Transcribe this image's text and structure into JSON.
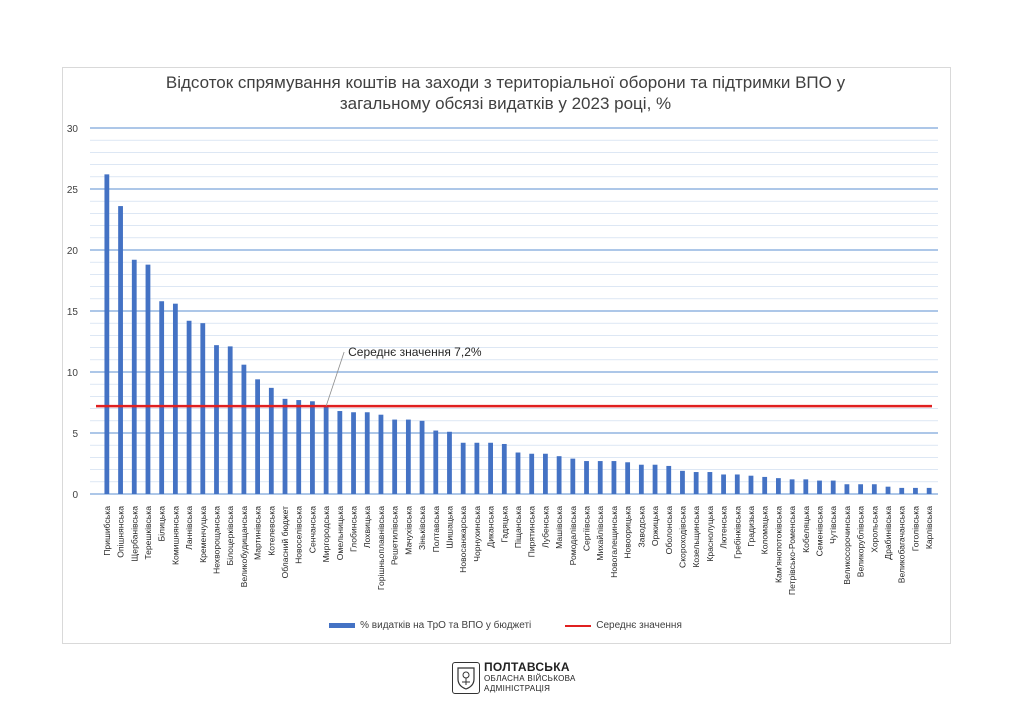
{
  "chart_data": {
    "type": "bar",
    "title_line1": "Відсоток спрямування коштів на заходи з територіальної оборони та підтримки ВПО у",
    "title_line2": "загальному обсязі видатків у 2023 році, %",
    "xlabel": "",
    "ylabel": "",
    "ylim": [
      0,
      30
    ],
    "yticks": [
      0,
      5,
      10,
      15,
      20,
      25,
      30
    ],
    "grid": true,
    "categories": [
      "Пришибська",
      "Опішнянська",
      "Щербанівська",
      "Терешківська",
      "Білицька",
      "Комишнянська",
      "Ланнівська",
      "Кременчуцька",
      "Нехворощанська",
      "Білоцерківська",
      "Великобудищанська",
      "Мартинівська",
      "Котелевська",
      "Обласний бюджет",
      "Новоселівська",
      "Сенчанська",
      "Миргородська",
      "Омельницька",
      "Глобинська",
      "Лохвицька",
      "Горішньоплавнівська",
      "Решетилівська",
      "Мачухівська",
      "Зіньківська",
      "Полтавська",
      "Шишацька",
      "Новосанжарська",
      "Чорнухинська",
      "Диканська",
      "Гадяцька",
      "Піщанська",
      "Пирятинська",
      "Лубенська",
      "Машівська",
      "Ромодалівська",
      "Сергіївська",
      "Михайлівська",
      "Новогалещинська",
      "Новоорицька",
      "Заводська",
      "Оржицька",
      "Оболонська",
      "Скороходівська",
      "Козельщинська",
      "Краснолуцька",
      "Лютенська",
      "Гребінківська",
      "Градизька",
      "Коломацька",
      "Кам'янопотоківська",
      "Петрівсько-Роменська",
      "Кобеляцька",
      "Семенівська",
      "Чутівська",
      "Великосорочинська",
      "Великорублівська",
      "Хорольська",
      "Драбинівська",
      "Великобагачанська",
      "Гоголівська",
      "Карлівська"
    ],
    "series": [
      {
        "name": "% видатків на ТрО та ВПО у бюджеті",
        "color": "#4472c4",
        "values": [
          26.2,
          23.6,
          19.2,
          18.8,
          15.8,
          15.6,
          14.2,
          14.0,
          12.2,
          12.1,
          10.6,
          9.4,
          8.7,
          7.8,
          7.7,
          7.6,
          7.2,
          6.8,
          6.7,
          6.7,
          6.5,
          6.1,
          6.1,
          6.0,
          5.2,
          5.1,
          4.2,
          4.2,
          4.2,
          4.1,
          3.4,
          3.3,
          3.3,
          3.1,
          2.9,
          2.7,
          2.7,
          2.7,
          2.6,
          2.4,
          2.4,
          2.3,
          1.9,
          1.8,
          1.8,
          1.6,
          1.6,
          1.5,
          1.4,
          1.3,
          1.2,
          1.2,
          1.1,
          1.1,
          0.8,
          0.8,
          0.8,
          0.6,
          0.5,
          0.5,
          0.5
        ]
      },
      {
        "name": "Середнє значення",
        "color": "#e02020",
        "type": "line",
        "value": 7.2
      }
    ],
    "annotation": "Середнє значення 7,2%",
    "legend_position": "bottom"
  },
  "footer": {
    "logo_main": "ПОЛТАВСЬКА",
    "logo_sub1": "ОБЛАСНА ВІЙСЬКОВА",
    "logo_sub2": "АДМІНІСТРАЦІЯ"
  }
}
